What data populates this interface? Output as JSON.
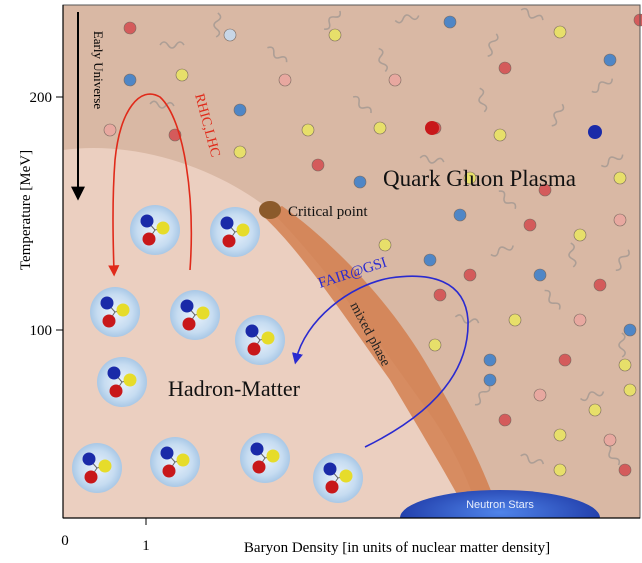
{
  "axes": {
    "y_label": "Temperature [MeV]",
    "x_label": "Baryon Density  [in units of nuclear matter density]",
    "y_ticks": [
      "200",
      "100"
    ],
    "x_ticks": [
      "0",
      "1"
    ]
  },
  "regions": {
    "qgp": "Quark Gluon Plasma",
    "hadron": "Hadron-Matter",
    "mixed": "mixed phase",
    "neutron": "Neutron Stars"
  },
  "annotations": {
    "early_universe": "Early Universe",
    "rhic_lhc": "RHIC,LHC",
    "fair": "FAIR@GSI",
    "critical_point": "Critical point"
  },
  "colors": {
    "qgp_bg": "#d9b8a4",
    "hadron_bg": "#ebcfc0",
    "mixed_band": "#d27a48",
    "red_arrow": "#e02a1a",
    "blue_arrow": "#2a2ad0",
    "neutron_star": "#2747b8",
    "critical_point": "#8b5a2b"
  }
}
